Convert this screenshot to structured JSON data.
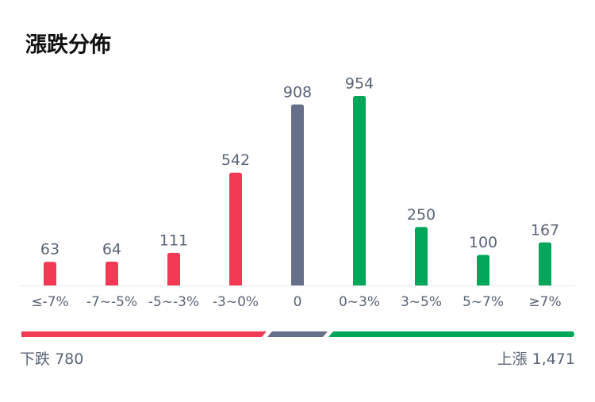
{
  "chart_data": {
    "type": "bar",
    "title": "漲跌分佈",
    "categories": [
      "≤-7%",
      "-7~-5%",
      "-5~-3%",
      "-3~0%",
      "0",
      "0~3%",
      "3~5%",
      "5~7%",
      "≥7%"
    ],
    "values": [
      63,
      64,
      111,
      542,
      908,
      954,
      250,
      100,
      167
    ],
    "colors": [
      "#f23a55",
      "#f23a55",
      "#f23a55",
      "#f23a55",
      "#66708a",
      "#00a65a",
      "#00a65a",
      "#00a65a",
      "#00a65a"
    ]
  },
  "summary": [
    {
      "name": "下跌",
      "value": 780
    },
    {
      "name": "上漲",
      "value": 1471,
      "value_label": "1,471"
    }
  ]
}
